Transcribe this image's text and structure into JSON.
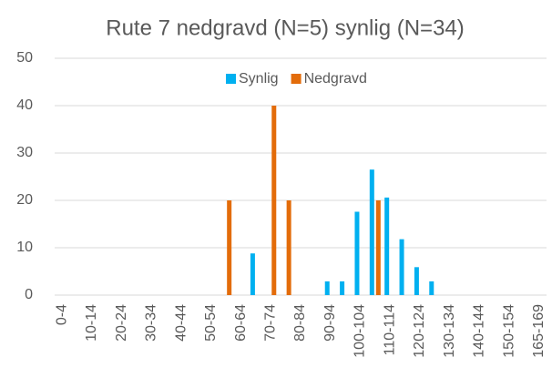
{
  "chart_data": {
    "type": "bar",
    "title": "Rute 7 nedgravd (N=5) synlig (N=34)",
    "categories": [
      "0-4",
      null,
      "10-14",
      null,
      "20-24",
      null,
      "30-34",
      null,
      "40-44",
      null,
      "50-54",
      null,
      "60-64",
      null,
      "70-74",
      null,
      "80-84",
      null,
      "90-94",
      null,
      "100-104",
      null,
      "110-114",
      null,
      "120-124",
      null,
      "130-134",
      null,
      "140-144",
      null,
      "150-154",
      null,
      "165-169"
    ],
    "series": [
      {
        "name": "Synlig",
        "color": "#00b0f0",
        "values": [
          0,
          0,
          0,
          0,
          0,
          0,
          0,
          0,
          0,
          0,
          0,
          0,
          0,
          8.8,
          0,
          0,
          0,
          0,
          2.9,
          2.9,
          17.6,
          26.5,
          20.6,
          11.8,
          5.9,
          2.9,
          0,
          0,
          0,
          0,
          0,
          0,
          0
        ]
      },
      {
        "name": "Nedgravd",
        "color": "#e36c0a",
        "values": [
          0,
          0,
          0,
          0,
          0,
          0,
          0,
          0,
          0,
          0,
          0,
          20,
          0,
          0,
          40,
          20,
          0,
          0,
          0,
          0,
          0,
          20,
          0,
          0,
          0,
          0,
          0,
          0,
          0,
          0,
          0,
          0,
          0
        ]
      }
    ],
    "ylim": [
      0,
      50
    ],
    "yticks": [
      0,
      10,
      20,
      30,
      40,
      50
    ],
    "grid": true,
    "legend": "top"
  }
}
